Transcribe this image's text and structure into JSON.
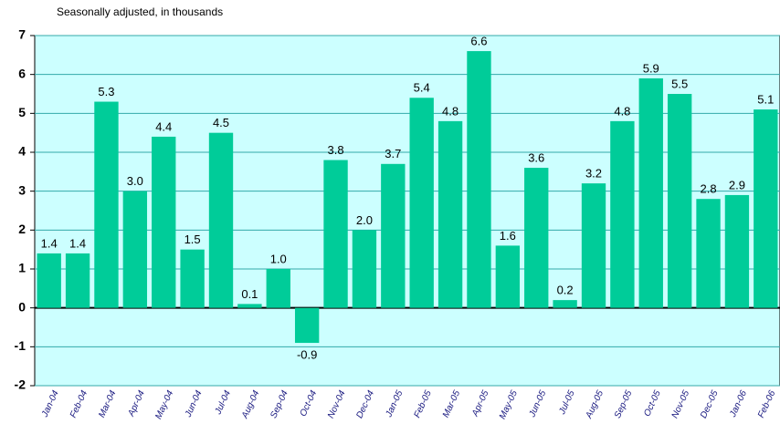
{
  "chart_data": {
    "type": "bar",
    "subtitle": "Seasonally adjusted, in thousands",
    "categories": [
      "Jan-04",
      "Feb-04",
      "Mar-04",
      "Apr-04",
      "May-04",
      "Jun-04",
      "Jul-04",
      "Aug-04",
      "Sep-04",
      "Oct-04",
      "Nov-04",
      "Dec-04",
      "Jan-05",
      "Feb-05",
      "Mar-05",
      "Apr-05",
      "May-05",
      "Jun-05",
      "Jul-05",
      "Aug-05",
      "Sep-05",
      "Oct-05",
      "Nov-05",
      "Dec-05",
      "Jan-06",
      "Feb-06"
    ],
    "values": [
      1.4,
      1.4,
      5.3,
      3.0,
      4.4,
      1.5,
      4.5,
      0.1,
      1.0,
      -0.9,
      3.8,
      2.0,
      3.7,
      5.4,
      4.8,
      6.6,
      1.6,
      3.6,
      0.2,
      3.2,
      4.8,
      5.9,
      5.5,
      2.8,
      2.9,
      5.1
    ],
    "value_labels": [
      "1.4",
      "1.4",
      "5.3",
      "3.0",
      "4.4",
      "1.5",
      "4.5",
      "0.1",
      "1.0",
      "-0.9",
      "3.8",
      "2.0",
      "3.7",
      "5.4",
      "4.8",
      "6.6",
      "1.6",
      "3.6",
      "0.2",
      "3.2",
      "4.8",
      "5.9",
      "5.5",
      "2.8",
      "2.9",
      "5.1"
    ],
    "color": "#00cc99",
    "background": "#ccffff",
    "ylim": [
      -2,
      7
    ],
    "yticks": [
      -2,
      -1,
      0,
      1,
      2,
      3,
      4,
      5,
      6,
      7
    ],
    "grid": true
  }
}
